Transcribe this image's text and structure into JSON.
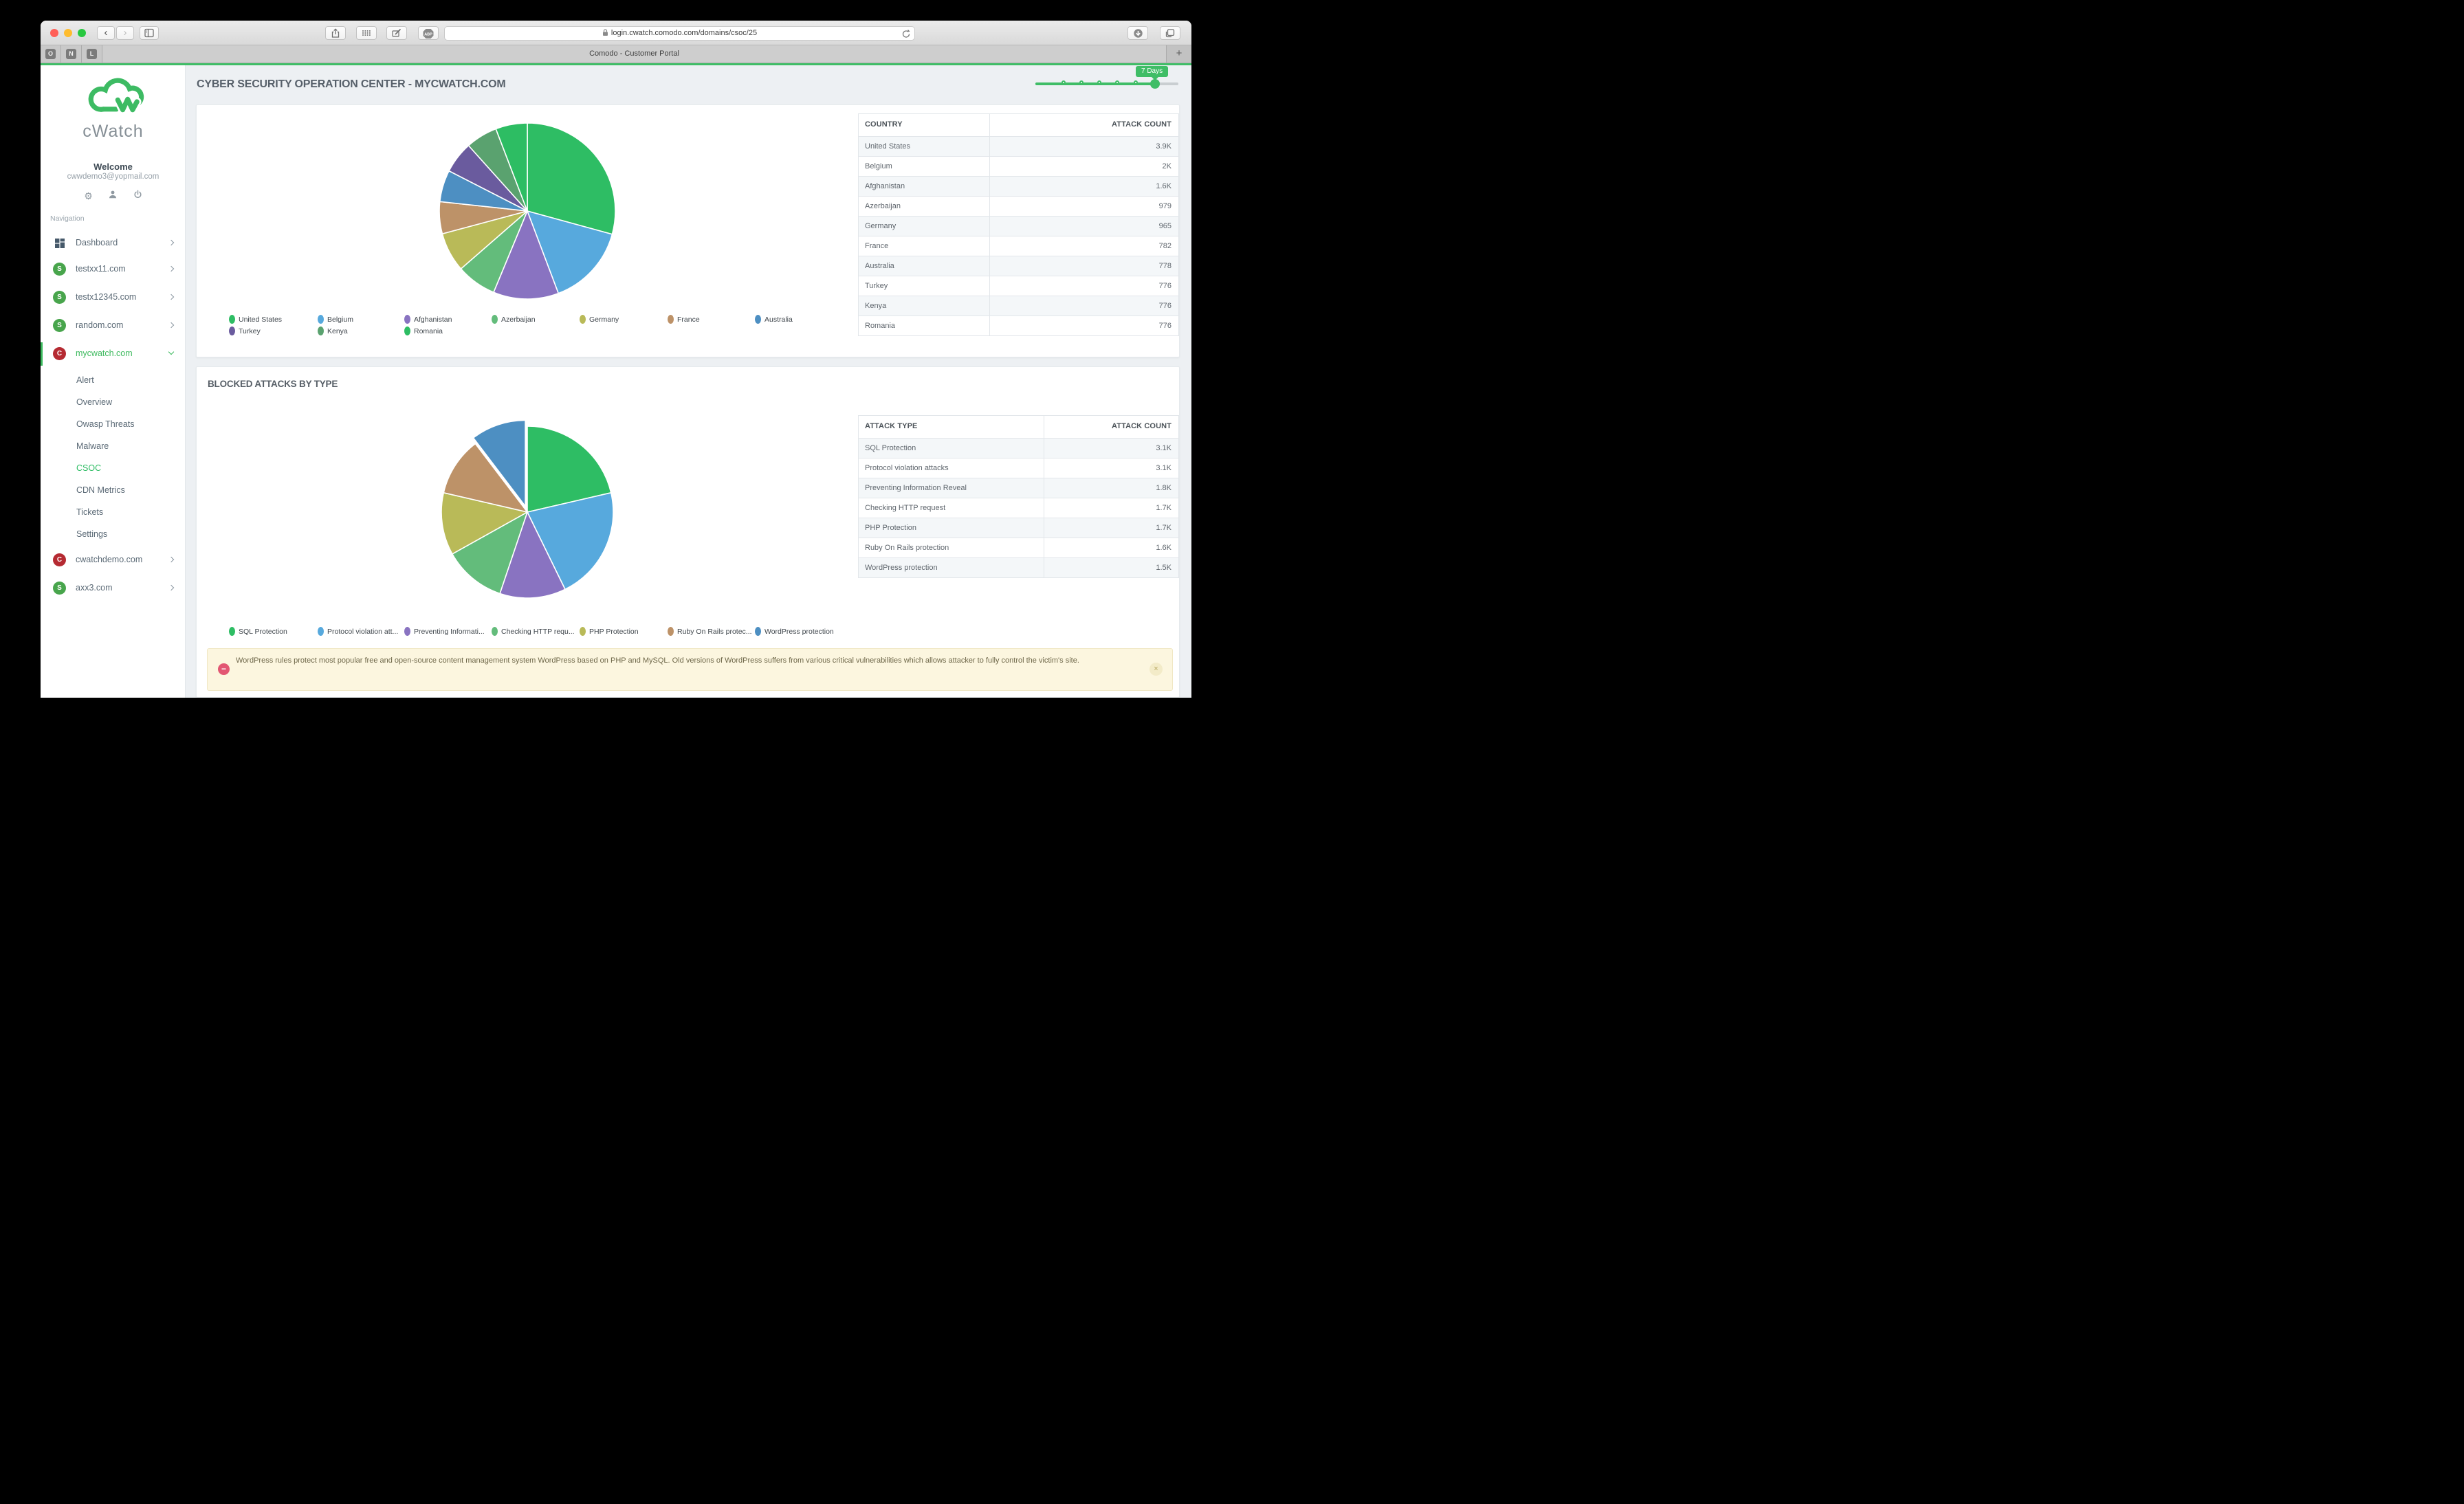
{
  "browser": {
    "url": "login.cwatch.comodo.com/domains/csoc/25",
    "tab_title": "Comodo - Customer Portal",
    "pinned_tabs": [
      "O",
      "N",
      "L"
    ],
    "new_tab_label": "+",
    "back_glyph": "‹",
    "forward_glyph": "›"
  },
  "sidebar": {
    "brand": "cWatch",
    "welcome": "Welcome",
    "email": "cwwdemo3@yopmail.com",
    "section_label": "Navigation",
    "gear_glyph": "⚙",
    "items": [
      {
        "label": "Dashboard",
        "badge": ""
      },
      {
        "label": "testxx11.com",
        "badge": "S"
      },
      {
        "label": "testx12345.com",
        "badge": "S"
      },
      {
        "label": "random.com",
        "badge": "S"
      },
      {
        "label": "mycwatch.com",
        "badge": "C"
      },
      {
        "label": "cwatchdemo.com",
        "badge": "C"
      },
      {
        "label": "axx3.com",
        "badge": "S"
      }
    ],
    "submenu": [
      {
        "label": "Alert"
      },
      {
        "label": "Overview"
      },
      {
        "label": "Owasp Threats"
      },
      {
        "label": "Malware"
      },
      {
        "label": "CSOC"
      },
      {
        "label": "CDN Metrics"
      },
      {
        "label": "Tickets"
      },
      {
        "label": "Settings"
      }
    ],
    "badge_green": "#48a54c",
    "badge_red": "#b52a32",
    "accent_green": "#3cb95d"
  },
  "main": {
    "page_title": "CYBER SECURITY OPERATION CENTER - MYCWATCH.COM",
    "time_range": "7 Days",
    "section2_title": "BLOCKED ATTACKS BY TYPE",
    "notice": {
      "text": "WordPress rules protect most popular free and open-source content management system WordPress based on PHP and MySQL. Old versions of WordPress suffers from various critical vulnerabilities which allows attacker to fully control the victim's site.",
      "minus_glyph": "−",
      "close_glyph": "×"
    }
  },
  "tables": [
    {
      "headers": [
        "COUNTRY",
        "ATTACK COUNT"
      ],
      "rows": [
        [
          "United States",
          "3.9K"
        ],
        [
          "Belgium",
          "2K"
        ],
        [
          "Afghanistan",
          "1.6K"
        ],
        [
          "Azerbaijan",
          "979"
        ],
        [
          "Germany",
          "965"
        ],
        [
          "France",
          "782"
        ],
        [
          "Australia",
          "778"
        ],
        [
          "Turkey",
          "776"
        ],
        [
          "Kenya",
          "776"
        ],
        [
          "Romania",
          "776"
        ]
      ]
    },
    {
      "headers": [
        "ATTACK TYPE",
        "ATTACK COUNT"
      ],
      "rows": [
        [
          "SQL Protection",
          "3.1K"
        ],
        [
          "Protocol violation attacks",
          "3.1K"
        ],
        [
          "Preventing Information Reveal",
          "1.8K"
        ],
        [
          "Checking HTTP request",
          "1.7K"
        ],
        [
          "PHP Protection",
          "1.7K"
        ],
        [
          "Ruby On Rails protection",
          "1.6K"
        ],
        [
          "WordPress protection",
          "1.5K"
        ]
      ]
    }
  ],
  "chart_data": [
    {
      "type": "pie",
      "title": "Blocked attacks by country",
      "labels": [
        "United States",
        "Belgium",
        "Afghanistan",
        "Azerbaijan",
        "Germany",
        "France",
        "Australia",
        "Turkey",
        "Kenya",
        "Romania"
      ],
      "values": [
        3900,
        2000,
        1600,
        979,
        965,
        782,
        778,
        776,
        776,
        776
      ],
      "display_counts": [
        "3.9K",
        "2K",
        "1.6K",
        "979",
        "965",
        "782",
        "778",
        "776",
        "776",
        "776"
      ],
      "colors": [
        "#2ebd64",
        "#57a9dd",
        "#8973c1",
        "#63bc7b",
        "#b9ba58",
        "#bd9268",
        "#4d8fc2",
        "#6a5b9e",
        "#5aa26f",
        "#2dbd63"
      ],
      "legend_labels": [
        "United States",
        "Belgium",
        "Afghanistan",
        "Azerbaijan",
        "Germany",
        "France",
        "Australia",
        "Turkey",
        "Kenya",
        "Romania"
      ],
      "legend_position": "bottom",
      "start_angle_deg": 0,
      "direction": "clockwise"
    },
    {
      "type": "pie",
      "title": "BLOCKED ATTACKS BY TYPE",
      "labels": [
        "SQL Protection",
        "Protocol violation attacks",
        "Preventing Information Reveal",
        "Checking HTTP request",
        "PHP Protection",
        "Ruby On Rails protection",
        "WordPress protection"
      ],
      "values": [
        3100,
        3100,
        1800,
        1700,
        1700,
        1600,
        1500
      ],
      "display_counts": [
        "3.1K",
        "3.1K",
        "1.8K",
        "1.7K",
        "1.7K",
        "1.6K",
        "1.5K"
      ],
      "colors": [
        "#2ebd64",
        "#57a9dd",
        "#8973c1",
        "#63bc7b",
        "#b9ba58",
        "#bd9268",
        "#4d8fc2"
      ],
      "legend_labels": [
        "SQL Protection",
        "Protocol violation att...",
        "Preventing Informati...",
        "Checking HTTP requ...",
        "PHP Protection",
        "Ruby On Rails protec...",
        "WordPress protection"
      ],
      "legend_position": "bottom",
      "exploded_index": 6,
      "start_angle_deg": 0,
      "direction": "clockwise"
    }
  ]
}
